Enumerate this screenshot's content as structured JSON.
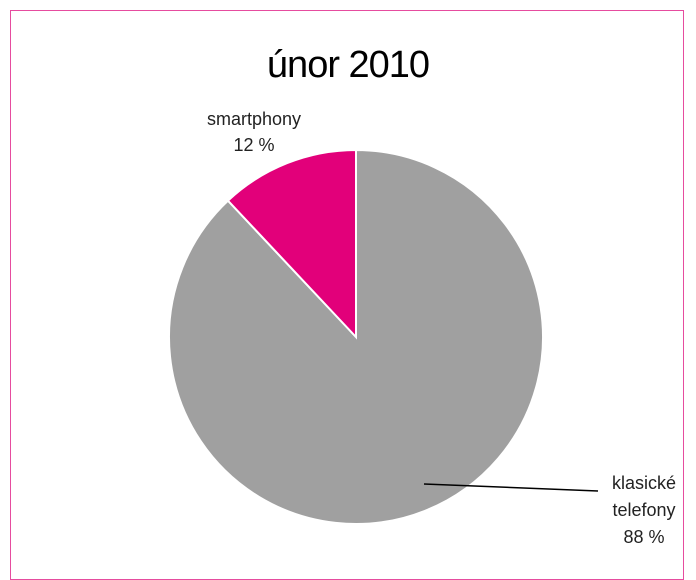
{
  "chart_data": {
    "type": "pie",
    "title": "únor 2010",
    "slices": [
      {
        "name": "smartphony",
        "value": 12,
        "label": "12 %",
        "color": "#e2007a"
      },
      {
        "name": "klasické telefony",
        "value": 88,
        "label": "88 %",
        "color": "#a0a0a0"
      }
    ],
    "start": "top (12 o'clock)",
    "order": "smartphony counter-clockwise from top, klasické telefony clockwise from top",
    "legend": "none (data labels)",
    "label_lines": {
      "smartphony": [
        "smartphony",
        "12 %"
      ],
      "klasické telefony": [
        "klasické",
        "telefony",
        "88 %"
      ]
    }
  },
  "frame_color": "#e64c9f"
}
